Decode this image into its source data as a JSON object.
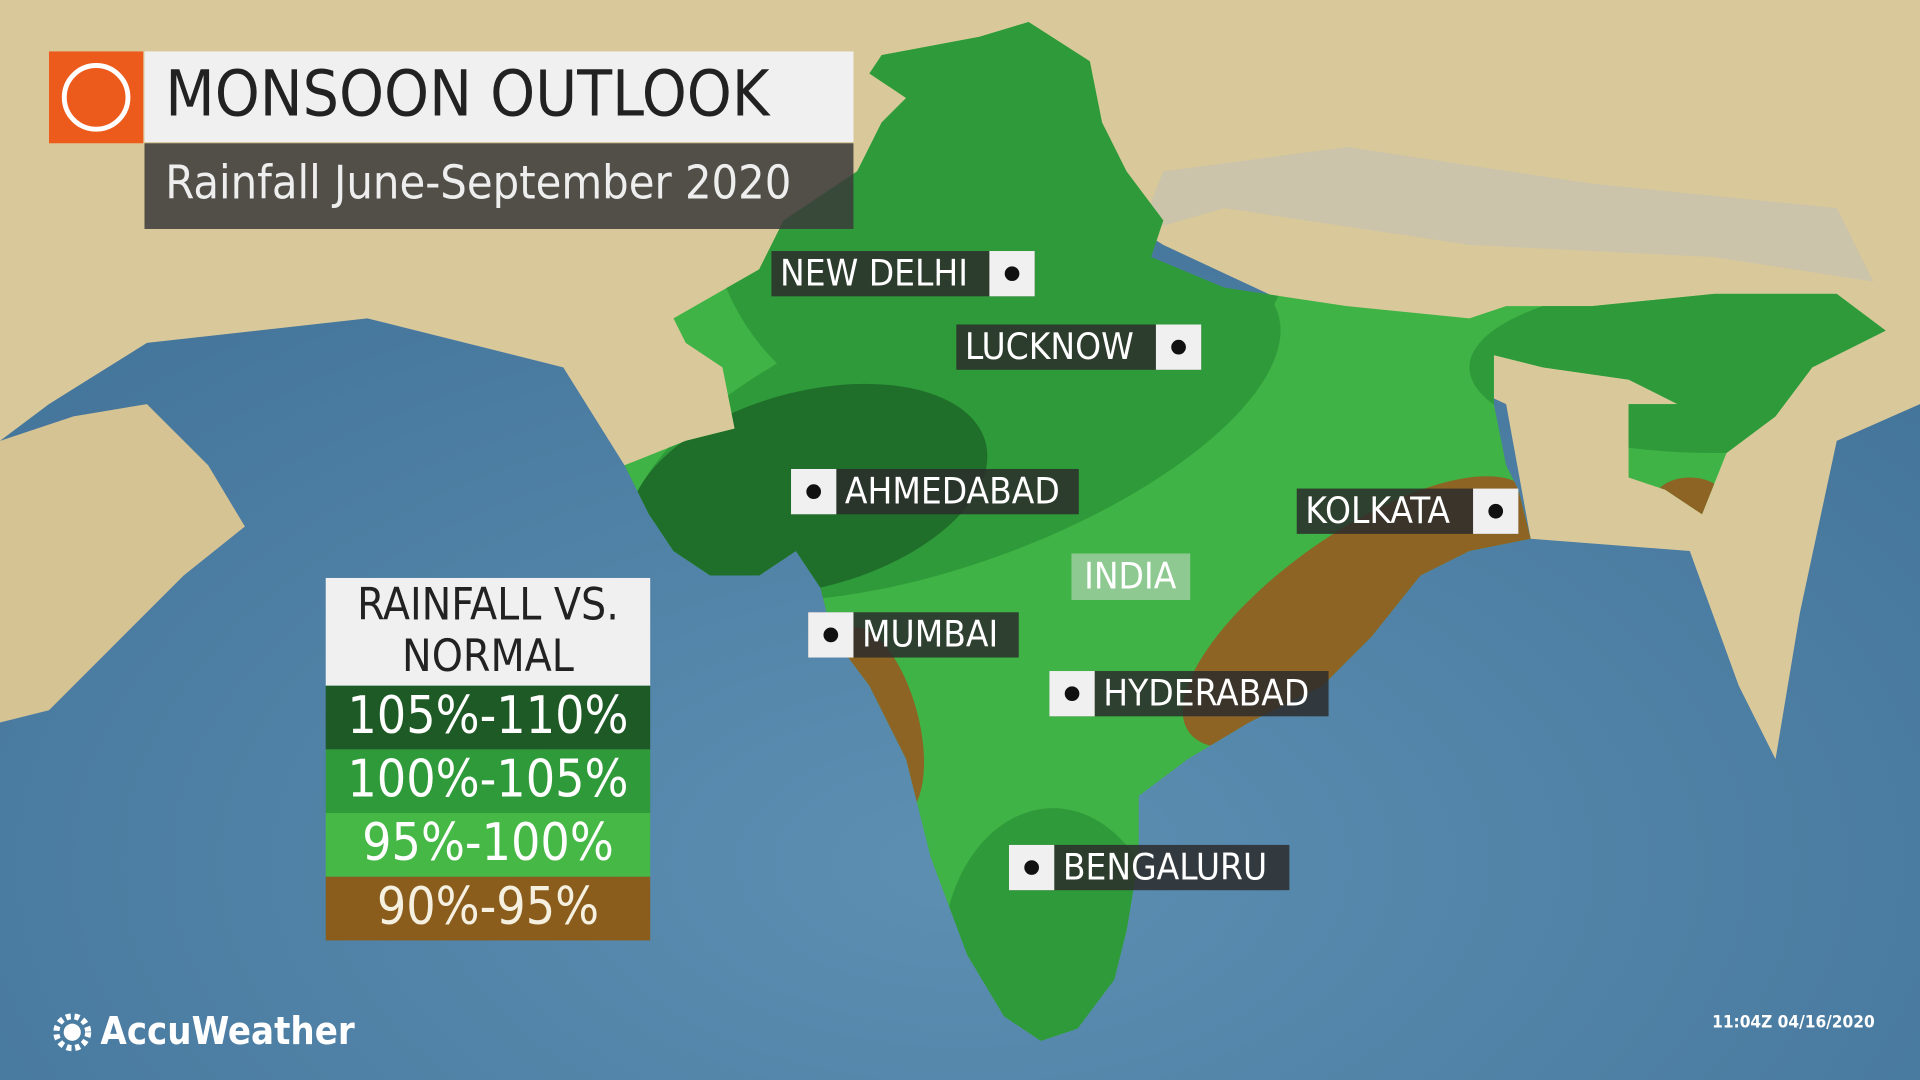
{
  "header": {
    "title": "MONSOON OUTLOOK",
    "subtitle": "Rainfall June-September 2020"
  },
  "cities": [
    "NEW DELHI",
    "LUCKNOW",
    "AHMEDABAD",
    "KOLKATA",
    "MUMBAI",
    "HYDERABAD",
    "BENGALURU"
  ],
  "country_label": "INDIA",
  "legend": {
    "title": "RAINFALL VS. NORMAL",
    "entries": [
      "105%-110%",
      "100%-105%",
      "95%-100%",
      "90%-95%"
    ]
  },
  "brand": "AccuWeather",
  "timestamp": "11:04Z 04/16/2020"
}
